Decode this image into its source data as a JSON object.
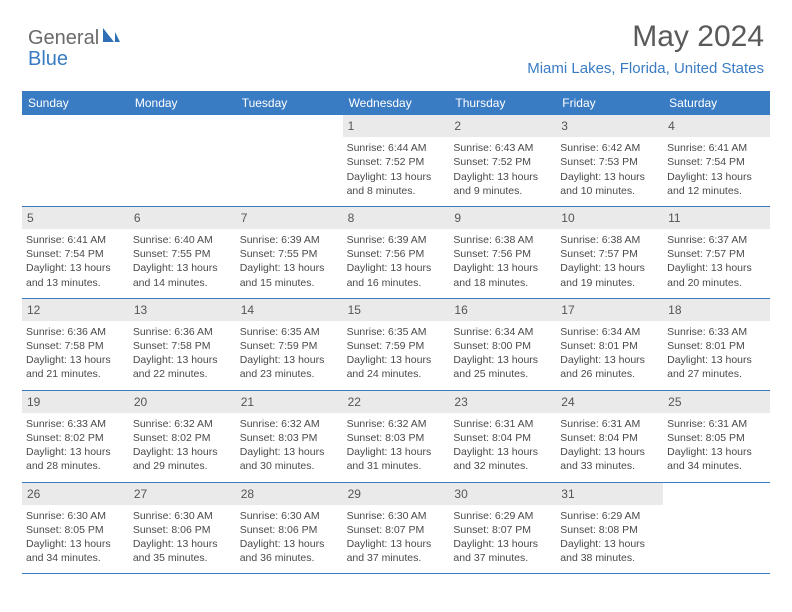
{
  "logo": {
    "text_a": "General",
    "text_b": "Blue",
    "icon_color": "#2f6fb5"
  },
  "header": {
    "month": "May 2024",
    "location": "Miami Lakes, Florida, United States"
  },
  "colors": {
    "header_bar": "#3a7cc4",
    "daynum_bg": "#eaeaea",
    "text": "#4a4a4a",
    "rule": "#3a7cc4"
  },
  "day_headers": [
    "Sunday",
    "Monday",
    "Tuesday",
    "Wednesday",
    "Thursday",
    "Friday",
    "Saturday"
  ],
  "weeks": [
    [
      {
        "empty": true
      },
      {
        "empty": true
      },
      {
        "empty": true
      },
      {
        "n": "1",
        "sr": "Sunrise: 6:44 AM",
        "ss": "Sunset: 7:52 PM",
        "d1": "Daylight: 13 hours",
        "d2": "and 8 minutes."
      },
      {
        "n": "2",
        "sr": "Sunrise: 6:43 AM",
        "ss": "Sunset: 7:52 PM",
        "d1": "Daylight: 13 hours",
        "d2": "and 9 minutes."
      },
      {
        "n": "3",
        "sr": "Sunrise: 6:42 AM",
        "ss": "Sunset: 7:53 PM",
        "d1": "Daylight: 13 hours",
        "d2": "and 10 minutes."
      },
      {
        "n": "4",
        "sr": "Sunrise: 6:41 AM",
        "ss": "Sunset: 7:54 PM",
        "d1": "Daylight: 13 hours",
        "d2": "and 12 minutes."
      }
    ],
    [
      {
        "n": "5",
        "sr": "Sunrise: 6:41 AM",
        "ss": "Sunset: 7:54 PM",
        "d1": "Daylight: 13 hours",
        "d2": "and 13 minutes."
      },
      {
        "n": "6",
        "sr": "Sunrise: 6:40 AM",
        "ss": "Sunset: 7:55 PM",
        "d1": "Daylight: 13 hours",
        "d2": "and 14 minutes."
      },
      {
        "n": "7",
        "sr": "Sunrise: 6:39 AM",
        "ss": "Sunset: 7:55 PM",
        "d1": "Daylight: 13 hours",
        "d2": "and 15 minutes."
      },
      {
        "n": "8",
        "sr": "Sunrise: 6:39 AM",
        "ss": "Sunset: 7:56 PM",
        "d1": "Daylight: 13 hours",
        "d2": "and 16 minutes."
      },
      {
        "n": "9",
        "sr": "Sunrise: 6:38 AM",
        "ss": "Sunset: 7:56 PM",
        "d1": "Daylight: 13 hours",
        "d2": "and 18 minutes."
      },
      {
        "n": "10",
        "sr": "Sunrise: 6:38 AM",
        "ss": "Sunset: 7:57 PM",
        "d1": "Daylight: 13 hours",
        "d2": "and 19 minutes."
      },
      {
        "n": "11",
        "sr": "Sunrise: 6:37 AM",
        "ss": "Sunset: 7:57 PM",
        "d1": "Daylight: 13 hours",
        "d2": "and 20 minutes."
      }
    ],
    [
      {
        "n": "12",
        "sr": "Sunrise: 6:36 AM",
        "ss": "Sunset: 7:58 PM",
        "d1": "Daylight: 13 hours",
        "d2": "and 21 minutes."
      },
      {
        "n": "13",
        "sr": "Sunrise: 6:36 AM",
        "ss": "Sunset: 7:58 PM",
        "d1": "Daylight: 13 hours",
        "d2": "and 22 minutes."
      },
      {
        "n": "14",
        "sr": "Sunrise: 6:35 AM",
        "ss": "Sunset: 7:59 PM",
        "d1": "Daylight: 13 hours",
        "d2": "and 23 minutes."
      },
      {
        "n": "15",
        "sr": "Sunrise: 6:35 AM",
        "ss": "Sunset: 7:59 PM",
        "d1": "Daylight: 13 hours",
        "d2": "and 24 minutes."
      },
      {
        "n": "16",
        "sr": "Sunrise: 6:34 AM",
        "ss": "Sunset: 8:00 PM",
        "d1": "Daylight: 13 hours",
        "d2": "and 25 minutes."
      },
      {
        "n": "17",
        "sr": "Sunrise: 6:34 AM",
        "ss": "Sunset: 8:01 PM",
        "d1": "Daylight: 13 hours",
        "d2": "and 26 minutes."
      },
      {
        "n": "18",
        "sr": "Sunrise: 6:33 AM",
        "ss": "Sunset: 8:01 PM",
        "d1": "Daylight: 13 hours",
        "d2": "and 27 minutes."
      }
    ],
    [
      {
        "n": "19",
        "sr": "Sunrise: 6:33 AM",
        "ss": "Sunset: 8:02 PM",
        "d1": "Daylight: 13 hours",
        "d2": "and 28 minutes."
      },
      {
        "n": "20",
        "sr": "Sunrise: 6:32 AM",
        "ss": "Sunset: 8:02 PM",
        "d1": "Daylight: 13 hours",
        "d2": "and 29 minutes."
      },
      {
        "n": "21",
        "sr": "Sunrise: 6:32 AM",
        "ss": "Sunset: 8:03 PM",
        "d1": "Daylight: 13 hours",
        "d2": "and 30 minutes."
      },
      {
        "n": "22",
        "sr": "Sunrise: 6:32 AM",
        "ss": "Sunset: 8:03 PM",
        "d1": "Daylight: 13 hours",
        "d2": "and 31 minutes."
      },
      {
        "n": "23",
        "sr": "Sunrise: 6:31 AM",
        "ss": "Sunset: 8:04 PM",
        "d1": "Daylight: 13 hours",
        "d2": "and 32 minutes."
      },
      {
        "n": "24",
        "sr": "Sunrise: 6:31 AM",
        "ss": "Sunset: 8:04 PM",
        "d1": "Daylight: 13 hours",
        "d2": "and 33 minutes."
      },
      {
        "n": "25",
        "sr": "Sunrise: 6:31 AM",
        "ss": "Sunset: 8:05 PM",
        "d1": "Daylight: 13 hours",
        "d2": "and 34 minutes."
      }
    ],
    [
      {
        "n": "26",
        "sr": "Sunrise: 6:30 AM",
        "ss": "Sunset: 8:05 PM",
        "d1": "Daylight: 13 hours",
        "d2": "and 34 minutes."
      },
      {
        "n": "27",
        "sr": "Sunrise: 6:30 AM",
        "ss": "Sunset: 8:06 PM",
        "d1": "Daylight: 13 hours",
        "d2": "and 35 minutes."
      },
      {
        "n": "28",
        "sr": "Sunrise: 6:30 AM",
        "ss": "Sunset: 8:06 PM",
        "d1": "Daylight: 13 hours",
        "d2": "and 36 minutes."
      },
      {
        "n": "29",
        "sr": "Sunrise: 6:30 AM",
        "ss": "Sunset: 8:07 PM",
        "d1": "Daylight: 13 hours",
        "d2": "and 37 minutes."
      },
      {
        "n": "30",
        "sr": "Sunrise: 6:29 AM",
        "ss": "Sunset: 8:07 PM",
        "d1": "Daylight: 13 hours",
        "d2": "and 37 minutes."
      },
      {
        "n": "31",
        "sr": "Sunrise: 6:29 AM",
        "ss": "Sunset: 8:08 PM",
        "d1": "Daylight: 13 hours",
        "d2": "and 38 minutes."
      },
      {
        "empty": true
      }
    ]
  ]
}
